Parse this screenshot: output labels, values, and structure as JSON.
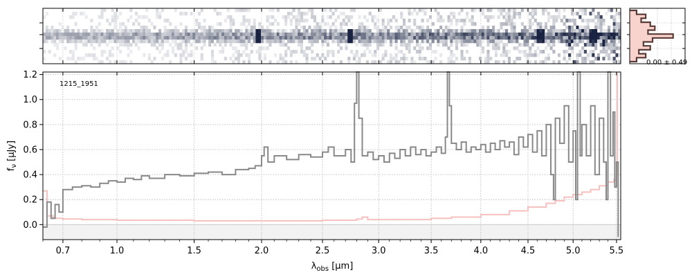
{
  "chart_data": [
    {
      "type": "heatmap",
      "panel": "2d-spectrum",
      "grid": true
    },
    {
      "type": "line",
      "panel": "1d-spectrum",
      "annotation": "1215_1951",
      "xlabel_main": "λ",
      "xlabel_sub": "obs",
      "xlabel_unit": " [μm]",
      "ylabel_main": "f",
      "ylabel_sub": "ν",
      "ylabel_unit": " [μJy]",
      "xlim": [
        0.6,
        5.55
      ],
      "ylim": [
        -0.12,
        1.22
      ],
      "grid": true,
      "x_ticks": [
        0.7,
        1.0,
        1.5,
        2.0,
        2.5,
        3.0,
        3.5,
        4.0,
        4.5,
        5.0,
        5.5
      ],
      "x_tick_labels": [
        "0.7",
        "1.0",
        "1.5",
        "2.0",
        "2.5",
        "3.0",
        "3.5",
        "4.0",
        "4.5",
        "5.0",
        "5.5"
      ],
      "y_ticks": [
        0.0,
        0.2,
        0.4,
        0.6,
        0.8,
        1.0,
        1.2
      ],
      "y_tick_labels": [
        "0.0",
        "0.2",
        "0.4",
        "0.6",
        "0.8",
        "1.0",
        "1.2"
      ],
      "series": [
        {
          "role": "flux",
          "color": "#888888",
          "points": [
            [
              0.6,
              -0.02
            ],
            [
              0.62,
              0.18
            ],
            [
              0.64,
              0.05
            ],
            [
              0.66,
              0.16
            ],
            [
              0.68,
              0.1
            ],
            [
              0.7,
              0.28
            ],
            [
              0.75,
              0.3
            ],
            [
              0.8,
              0.31
            ],
            [
              0.85,
              0.3
            ],
            [
              0.9,
              0.33
            ],
            [
              0.95,
              0.35
            ],
            [
              1.0,
              0.34
            ],
            [
              1.05,
              0.37
            ],
            [
              1.1,
              0.36
            ],
            [
              1.15,
              0.39
            ],
            [
              1.2,
              0.37
            ],
            [
              1.3,
              0.4
            ],
            [
              1.4,
              0.39
            ],
            [
              1.5,
              0.41
            ],
            [
              1.6,
              0.42
            ],
            [
              1.7,
              0.4
            ],
            [
              1.8,
              0.44
            ],
            [
              1.9,
              0.45
            ],
            [
              1.95,
              0.47
            ],
            [
              2.0,
              0.55
            ],
            [
              2.02,
              0.62
            ],
            [
              2.05,
              0.5
            ],
            [
              2.1,
              0.55
            ],
            [
              2.2,
              0.52
            ],
            [
              2.3,
              0.56
            ],
            [
              2.4,
              0.54
            ],
            [
              2.5,
              0.58
            ],
            [
              2.55,
              0.62
            ],
            [
              2.6,
              0.55
            ],
            [
              2.7,
              0.6
            ],
            [
              2.75,
              0.5
            ],
            [
              2.78,
              0.97
            ],
            [
              2.8,
              1.22
            ],
            [
              2.82,
              0.85
            ],
            [
              2.85,
              0.55
            ],
            [
              2.9,
              0.58
            ],
            [
              2.95,
              0.52
            ],
            [
              3.0,
              0.55
            ],
            [
              3.05,
              0.5
            ],
            [
              3.1,
              0.57
            ],
            [
              3.15,
              0.53
            ],
            [
              3.2,
              0.6
            ],
            [
              3.25,
              0.55
            ],
            [
              3.3,
              0.62
            ],
            [
              3.35,
              0.56
            ],
            [
              3.4,
              0.6
            ],
            [
              3.45,
              0.55
            ],
            [
              3.5,
              0.58
            ],
            [
              3.55,
              0.62
            ],
            [
              3.6,
              0.57
            ],
            [
              3.64,
              0.7
            ],
            [
              3.66,
              1.22
            ],
            [
              3.68,
              0.95
            ],
            [
              3.7,
              0.65
            ],
            [
              3.75,
              0.6
            ],
            [
              3.8,
              0.66
            ],
            [
              3.85,
              0.58
            ],
            [
              3.9,
              0.62
            ],
            [
              3.95,
              0.6
            ],
            [
              4.0,
              0.64
            ],
            [
              4.05,
              0.58
            ],
            [
              4.1,
              0.65
            ],
            [
              4.15,
              0.6
            ],
            [
              4.2,
              0.67
            ],
            [
              4.25,
              0.62
            ],
            [
              4.3,
              0.66
            ],
            [
              4.35,
              0.56
            ],
            [
              4.4,
              0.7
            ],
            [
              4.45,
              0.62
            ],
            [
              4.5,
              0.72
            ],
            [
              4.55,
              0.58
            ],
            [
              4.6,
              0.75
            ],
            [
              4.65,
              0.55
            ],
            [
              4.7,
              0.8
            ],
            [
              4.75,
              0.4
            ],
            [
              4.78,
              0.2
            ],
            [
              4.8,
              0.85
            ],
            [
              4.85,
              0.65
            ],
            [
              4.9,
              0.95
            ],
            [
              4.95,
              0.5
            ],
            [
              5.0,
              0.75
            ],
            [
              5.03,
              0.2
            ],
            [
              5.05,
              1.22
            ],
            [
              5.08,
              0.55
            ],
            [
              5.1,
              0.8
            ],
            [
              5.15,
              0.55
            ],
            [
              5.2,
              0.95
            ],
            [
              5.25,
              0.4
            ],
            [
              5.3,
              0.85
            ],
            [
              5.35,
              0.5
            ],
            [
              5.38,
              0.2
            ],
            [
              5.4,
              1.22
            ],
            [
              5.43,
              0.55
            ],
            [
              5.46,
              0.9
            ],
            [
              5.48,
              0.3
            ],
            [
              5.5,
              0.5
            ],
            [
              5.52,
              -0.1
            ]
          ]
        },
        {
          "role": "uncertainty",
          "color": "#f5c0bd",
          "points": [
            [
              0.6,
              0.27
            ],
            [
              0.62,
              0.07
            ],
            [
              0.65,
              0.05
            ],
            [
              0.7,
              0.045
            ],
            [
              0.8,
              0.04
            ],
            [
              1.0,
              0.035
            ],
            [
              1.5,
              0.03
            ],
            [
              2.0,
              0.03
            ],
            [
              2.5,
              0.035
            ],
            [
              2.8,
              0.045
            ],
            [
              2.85,
              0.06
            ],
            [
              2.9,
              0.04
            ],
            [
              3.0,
              0.04
            ],
            [
              3.5,
              0.05
            ],
            [
              3.7,
              0.06
            ],
            [
              4.0,
              0.08
            ],
            [
              4.3,
              0.11
            ],
            [
              4.5,
              0.14
            ],
            [
              4.7,
              0.17
            ],
            [
              4.8,
              0.19
            ],
            [
              4.9,
              0.22
            ],
            [
              5.0,
              0.24
            ],
            [
              5.1,
              0.26
            ],
            [
              5.2,
              0.28
            ],
            [
              5.3,
              0.31
            ],
            [
              5.4,
              0.34
            ],
            [
              5.47,
              0.36
            ],
            [
              5.5,
              0.4
            ],
            [
              5.51,
              1.22
            ]
          ]
        }
      ]
    },
    {
      "type": "line",
      "panel": "pixel-histogram",
      "annotation": "0.00 ± 0.49",
      "grid": true,
      "color": "#5a3a35",
      "fill_color": "#f8d2cc",
      "values": [
        0.15,
        0.35,
        0.25,
        0.45,
        0.55,
        0.4,
        0.95,
        0.5,
        0.3,
        0.45,
        0.2,
        0.35,
        0.15
      ]
    }
  ]
}
